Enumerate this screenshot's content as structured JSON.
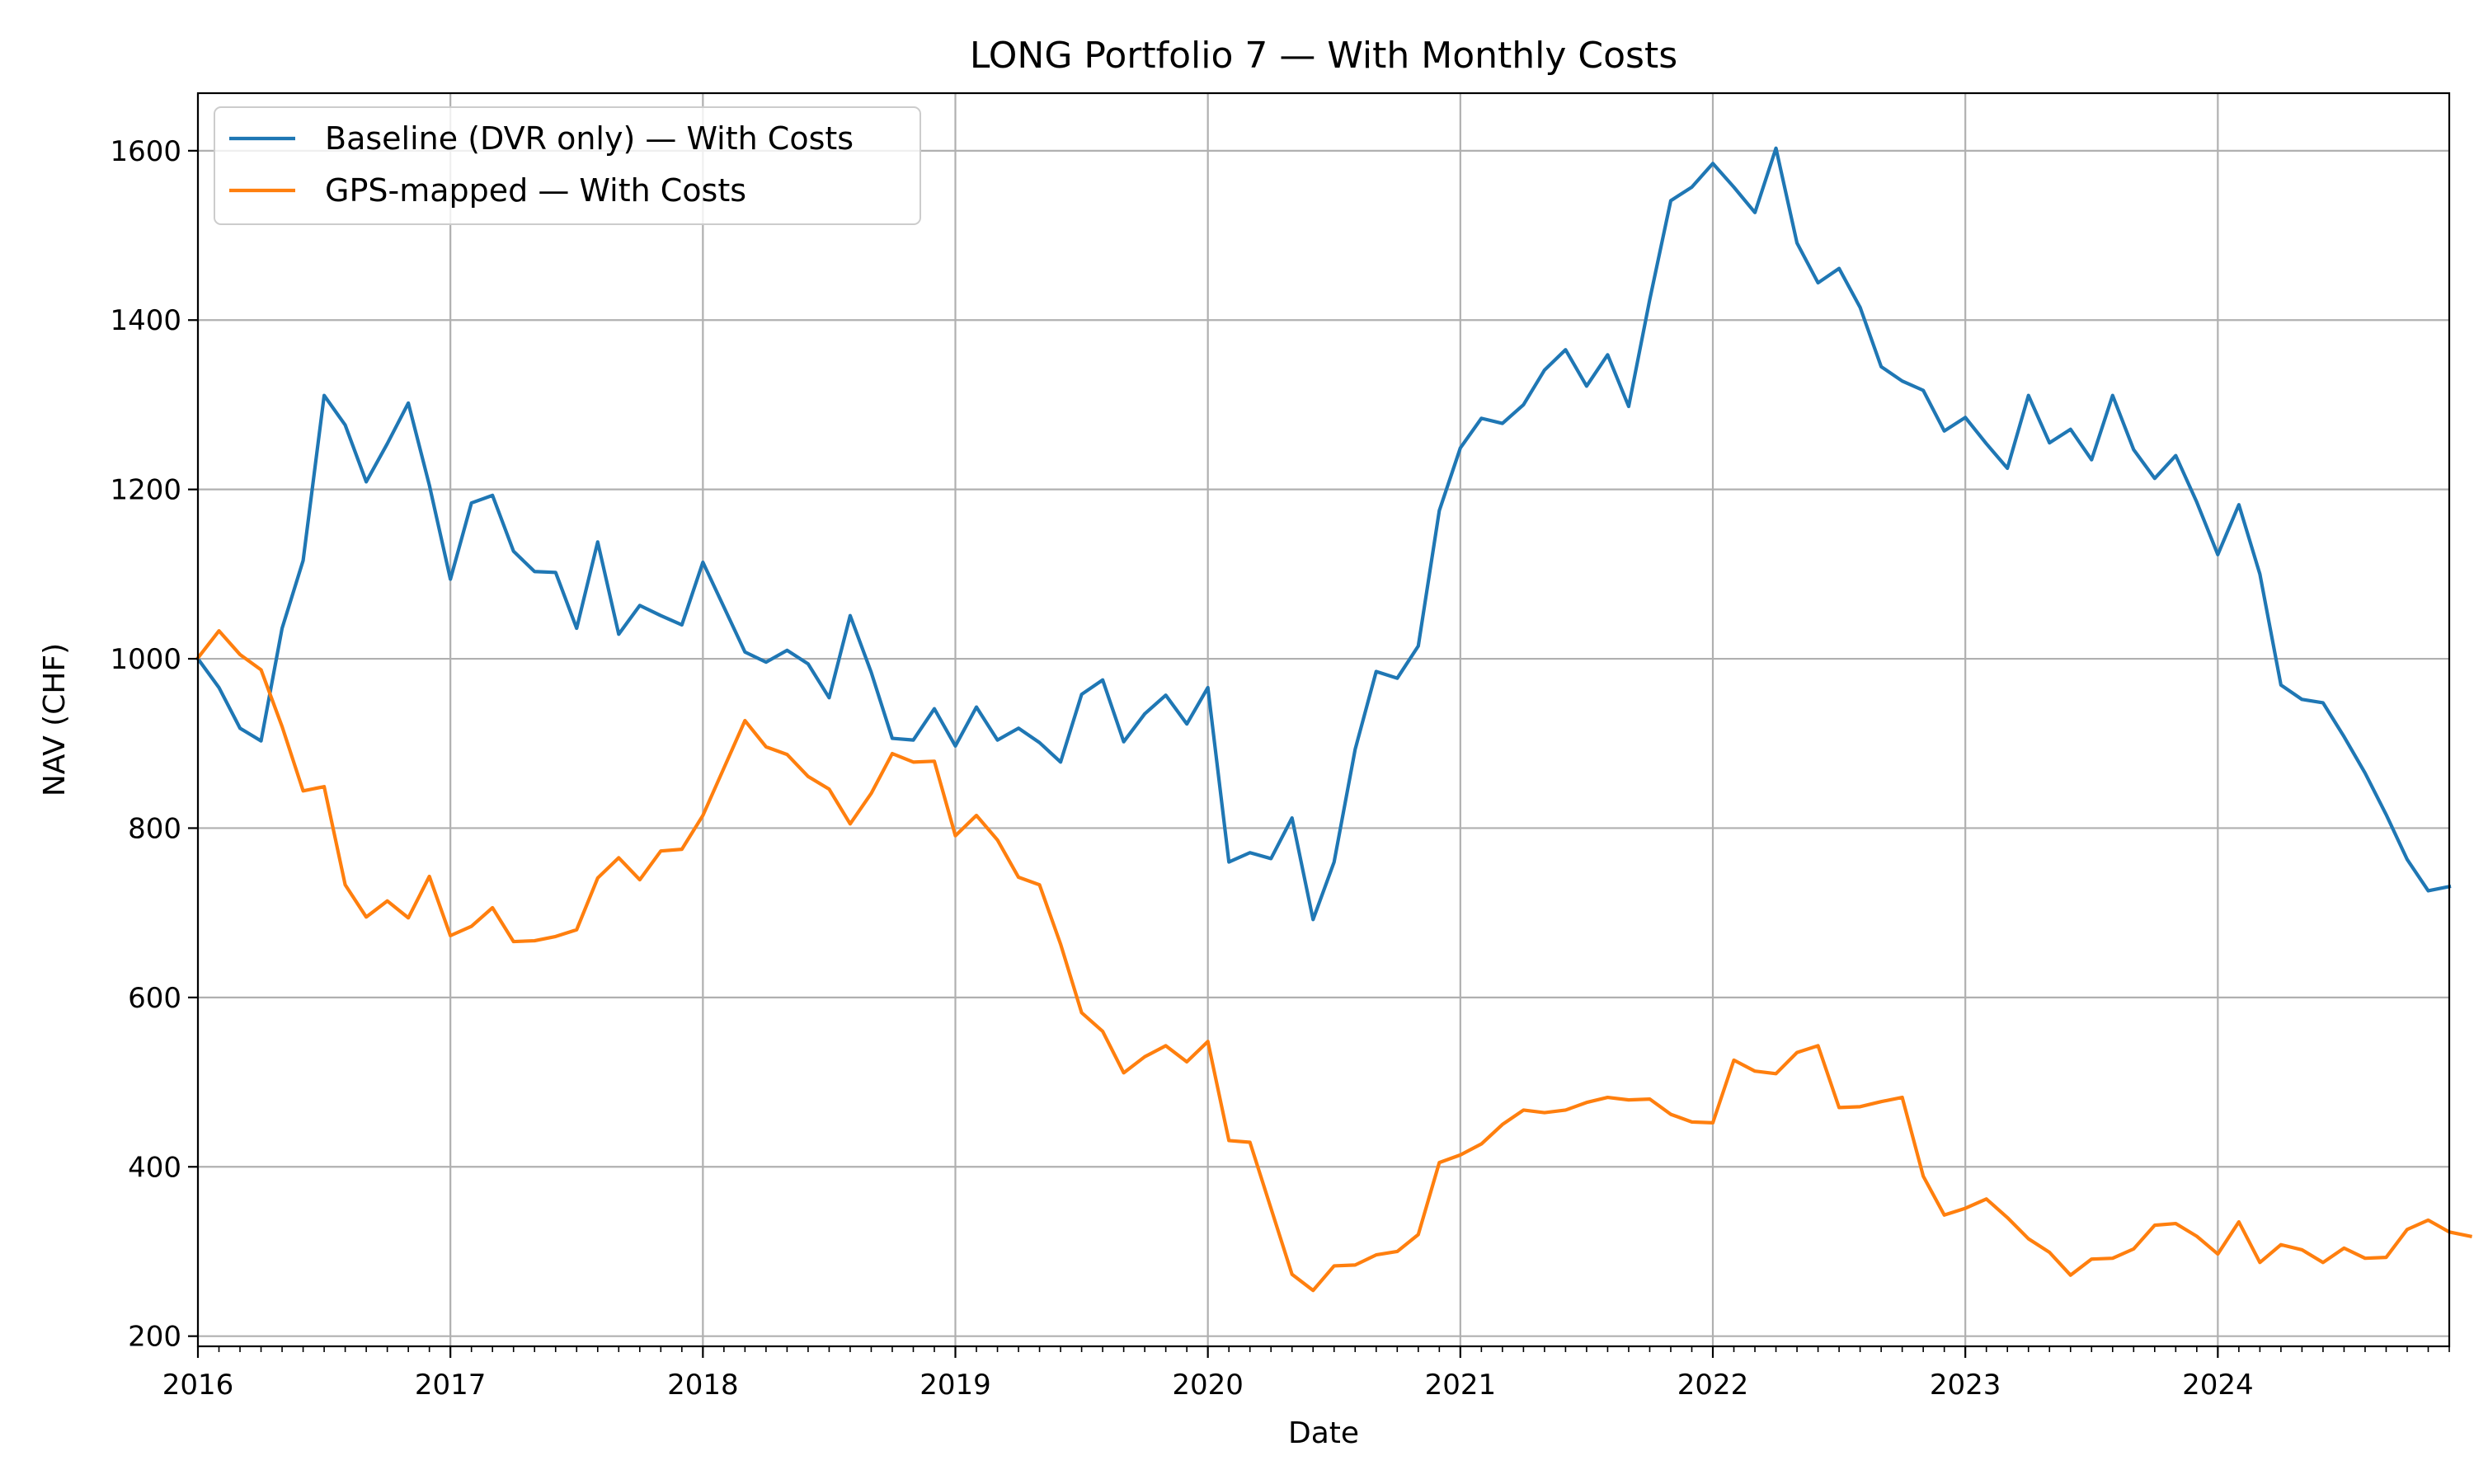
{
  "chart_data": {
    "type": "line",
    "title": "LONG Portfolio 7 — With Monthly Costs",
    "xlabel": "Date",
    "ylabel": "NAV (CHF)",
    "x_start": "2016-01",
    "x_end": "2024-12",
    "x_frequency": "monthly",
    "xlim": [
      "2016-01",
      "2024-12"
    ],
    "ylim": [
      188,
      1668
    ],
    "x_ticks": [
      "2016",
      "2017",
      "2018",
      "2019",
      "2020",
      "2021",
      "2022",
      "2023",
      "2024"
    ],
    "y_ticks": [
      200,
      400,
      600,
      800,
      1000,
      1200,
      1400,
      1600
    ],
    "grid": true,
    "legend_position": "upper left",
    "series": [
      {
        "name": "Baseline (DVR only) — With Costs",
        "color": "#1f77b4",
        "values": [
          1000,
          966,
          918,
          903,
          1036,
          1116,
          1311,
          1276,
          1209,
          1254,
          1302,
          1205,
          1094,
          1184,
          1193,
          1127,
          1103,
          1102,
          1036,
          1138,
          1029,
          1063,
          1051,
          1040,
          1114,
          1061,
          1008,
          996,
          1010,
          994,
          954,
          1051,
          984,
          906,
          904,
          941,
          897,
          943,
          904,
          918,
          901,
          878,
          958,
          975,
          902,
          935,
          957,
          923,
          966,
          760,
          771,
          764,
          812,
          692,
          760,
          893,
          985,
          977,
          1015,
          1175,
          1249,
          1284,
          1278,
          1300,
          1341,
          1365,
          1322,
          1359,
          1298,
          1424,
          1541,
          1557,
          1585,
          1557,
          1527,
          1603,
          1491,
          1444,
          1461,
          1415,
          1345,
          1328,
          1317,
          1269,
          1285,
          1254,
          1225,
          1311,
          1255,
          1271,
          1235,
          1311,
          1247,
          1213,
          1240,
          1185,
          1123,
          1182,
          1100,
          969,
          952,
          948,
          908,
          865,
          816,
          763,
          726,
          731
        ]
      },
      {
        "name": "GPS-mapped — With Costs",
        "color": "#ff7f0e",
        "values": [
          1001,
          1033,
          1005,
          987,
          920,
          844,
          849,
          733,
          695,
          714,
          694,
          743,
          673,
          684,
          706,
          666,
          667,
          672,
          680,
          741,
          765,
          739,
          773,
          775,
          815,
          871,
          927,
          896,
          887,
          861,
          846,
          805,
          841,
          888,
          878,
          879,
          791,
          815,
          786,
          742,
          733,
          663,
          582,
          560,
          511,
          530,
          543,
          524,
          548,
          431,
          429,
          351,
          273,
          254,
          283,
          284,
          296,
          300,
          320,
          405,
          414,
          427,
          450,
          467,
          464,
          467,
          476,
          482,
          479,
          480,
          462,
          453,
          452,
          526,
          513,
          510,
          535,
          543,
          470,
          471,
          477,
          482,
          389,
          343,
          351,
          362,
          340,
          315,
          299,
          272,
          291,
          292,
          303,
          331,
          333,
          318,
          297,
          335,
          287,
          308,
          302,
          287,
          304,
          292,
          293,
          326,
          337,
          323,
          318
        ]
      }
    ]
  }
}
